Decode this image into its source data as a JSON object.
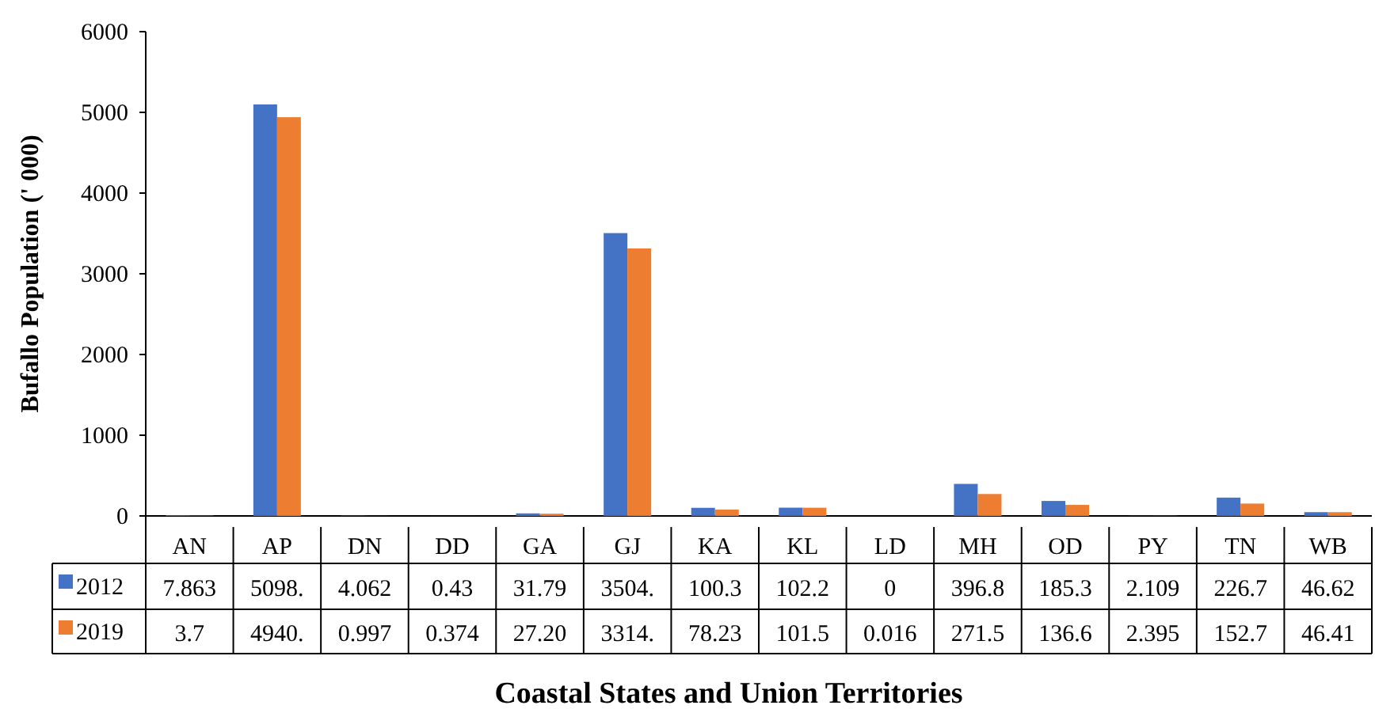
{
  "chart_data": {
    "type": "bar",
    "xlabel": "Coastal States and Union Territories",
    "ylabel": "Bufallo Population (' 000)",
    "categories": [
      "AN",
      "AP",
      "DN",
      "DD",
      "GA",
      "GJ",
      "KA",
      "KL",
      "LD",
      "MH",
      "OD",
      "PY",
      "TN",
      "WB"
    ],
    "series": [
      {
        "name": "2012",
        "color": "#4472c4",
        "values": [
          7.863,
          5098,
          4.062,
          0.43,
          31.79,
          3504,
          100.3,
          102.2,
          0,
          396.8,
          185.3,
          2.109,
          226.7,
          46.62
        ],
        "value_labels": [
          "7.863",
          "5098.",
          "4.062",
          "0.43",
          "31.79",
          "3504.",
          "100.3",
          "102.2",
          "0",
          "396.8",
          "185.3",
          "2.109",
          "226.7",
          "46.62"
        ]
      },
      {
        "name": "2019",
        "color": "#ed7d31",
        "values": [
          3.7,
          4940,
          0.997,
          0.374,
          27.2,
          3314,
          78.23,
          101.5,
          0.016,
          271.5,
          136.6,
          2.395,
          152.7,
          46.41
        ],
        "value_labels": [
          "3.7",
          "4940.",
          "0.997",
          "0.374",
          "27.20",
          "3314.",
          "78.23",
          "101.5",
          "0.016",
          "271.5",
          "136.6",
          "2.395",
          "152.7",
          "46.41"
        ]
      }
    ],
    "ylim": [
      0,
      6000
    ],
    "yticks": [
      0,
      1000,
      2000,
      3000,
      4000,
      5000,
      6000
    ],
    "grid": false,
    "legend": "bottom"
  }
}
